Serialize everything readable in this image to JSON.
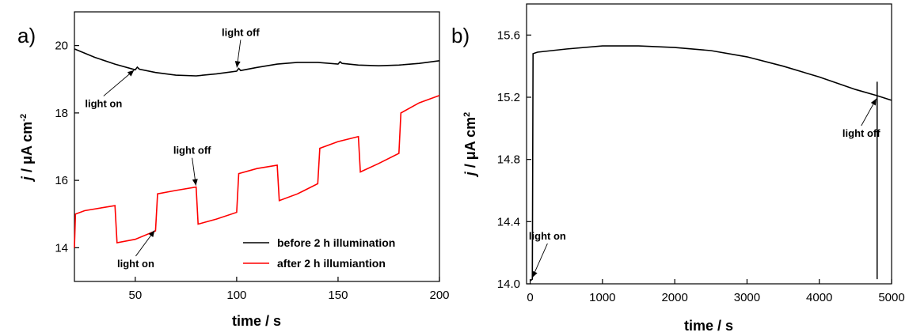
{
  "chart_data": [
    {
      "panel_label": "a)",
      "type": "line",
      "xlabel": "time / s",
      "ylabel": "j / μA cm-2",
      "ylabel_parts": {
        "symbol": "j",
        "unit": " / μA cm",
        "exp": "-2"
      },
      "xlim": [
        20,
        200
      ],
      "ylim": [
        13,
        21
      ],
      "xticks": [
        "50",
        "100",
        "150",
        "200"
      ],
      "yticks": [
        "14",
        "16",
        "18",
        "20"
      ],
      "series": [
        {
          "name": "before 2 h illumination",
          "color": "#000000",
          "points": [
            [
              20,
              19.9
            ],
            [
              30,
              19.65
            ],
            [
              40,
              19.45
            ],
            [
              50,
              19.28
            ],
            [
              51,
              19.36
            ],
            [
              52,
              19.3
            ],
            [
              60,
              19.2
            ],
            [
              70,
              19.12
            ],
            [
              80,
              19.1
            ],
            [
              90,
              19.16
            ],
            [
              100,
              19.24
            ],
            [
              101,
              19.32
            ],
            [
              102,
              19.26
            ],
            [
              110,
              19.35
            ],
            [
              120,
              19.45
            ],
            [
              130,
              19.5
            ],
            [
              140,
              19.5
            ],
            [
              150,
              19.45
            ],
            [
              151,
              19.52
            ],
            [
              152,
              19.47
            ],
            [
              160,
              19.42
            ],
            [
              170,
              19.4
            ],
            [
              180,
              19.42
            ],
            [
              190,
              19.47
            ],
            [
              200,
              19.55
            ]
          ]
        },
        {
          "name": "after 2 h illumiantion",
          "color": "#ff0000",
          "points": [
            [
              20,
              14.0
            ],
            [
              20.5,
              15.0
            ],
            [
              25,
              15.1
            ],
            [
              35,
              15.2
            ],
            [
              40,
              15.25
            ],
            [
              41,
              14.15
            ],
            [
              50,
              14.25
            ],
            [
              60,
              14.5
            ],
            [
              61,
              15.6
            ],
            [
              70,
              15.7
            ],
            [
              80,
              15.8
            ],
            [
              81,
              14.7
            ],
            [
              90,
              14.85
            ],
            [
              100,
              15.05
            ],
            [
              101,
              16.2
            ],
            [
              110,
              16.35
            ],
            [
              120,
              16.45
            ],
            [
              121,
              15.4
            ],
            [
              130,
              15.6
            ],
            [
              140,
              15.9
            ],
            [
              141,
              16.95
            ],
            [
              150,
              17.15
            ],
            [
              160,
              17.3
            ],
            [
              161,
              16.25
            ],
            [
              170,
              16.5
            ],
            [
              180,
              16.8
            ],
            [
              181,
              18.0
            ],
            [
              190,
              18.3
            ],
            [
              200,
              18.52
            ]
          ]
        }
      ],
      "annotations": [
        {
          "text": "light off",
          "x": 100,
          "y": 19.3
        },
        {
          "text": "light on",
          "x": 50,
          "y": 19.3
        },
        {
          "text": "light off",
          "x": 80,
          "y": 15.8
        },
        {
          "text": "light on",
          "x": 60,
          "y": 14.55
        }
      ],
      "legend_position": "bottom-right"
    },
    {
      "panel_label": "b)",
      "type": "line",
      "xlabel": "time / s",
      "ylabel": "j / μA cm2",
      "ylabel_parts": {
        "symbol": "j",
        "unit": " / μA cm",
        "exp": "2"
      },
      "xlim": [
        -50,
        5000
      ],
      "ylim": [
        14.0,
        15.8
      ],
      "xticks": [
        "0",
        "1000",
        "2000",
        "3000",
        "4000",
        "5000"
      ],
      "yticks": [
        "14.0",
        "14.4",
        "14.8",
        "15.2",
        "15.6"
      ],
      "series": [
        {
          "color": "#000000",
          "points": [
            [
              0,
              14.02
            ],
            [
              30,
              14.03
            ],
            [
              40,
              15.48
            ],
            [
              100,
              15.49
            ],
            [
              500,
              15.51
            ],
            [
              1000,
              15.53
            ],
            [
              1500,
              15.53
            ],
            [
              2000,
              15.52
            ],
            [
              2500,
              15.5
            ],
            [
              3000,
              15.46
            ],
            [
              3500,
              15.4
            ],
            [
              4000,
              15.33
            ],
            [
              4500,
              15.25
            ],
            [
              4800,
              15.21
            ],
            [
              5000,
              15.18
            ]
          ]
        }
      ],
      "vertical_line": {
        "x": 4800,
        "y_from": 14.03,
        "y_to": 15.3
      },
      "annotations": [
        {
          "text": "light on",
          "x": 20,
          "y": 14.03
        },
        {
          "text": "light off",
          "x": 4800,
          "y": 15.2
        }
      ]
    }
  ]
}
